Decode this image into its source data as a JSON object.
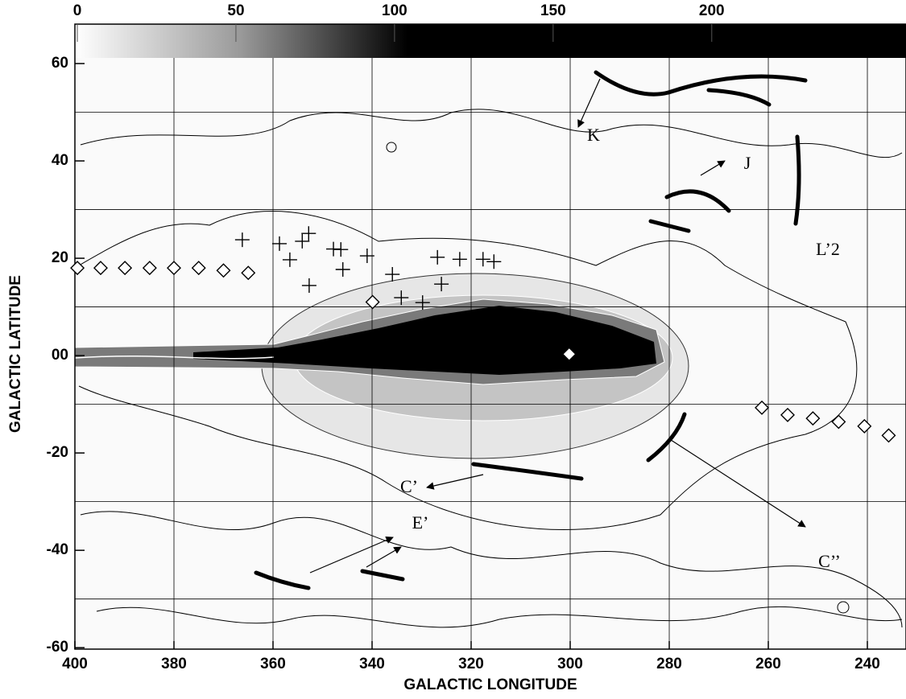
{
  "colorbar": {
    "lim": [
      0,
      262
    ],
    "ticks": [
      0,
      50,
      100,
      150,
      200
    ]
  },
  "chart_data": {
    "type": "map",
    "xlabel": "GALACTIC LONGITUDE",
    "ylabel": "GALACTIC LATITUDE",
    "xlim": [
      400,
      232.2
    ],
    "ylim": [
      -60.3,
      68.1
    ],
    "xticks": [
      400,
      380,
      360,
      340,
      320,
      300,
      280,
      260,
      240
    ],
    "yticks": [
      60,
      40,
      20,
      {
        "value": 0,
        "label": "00"
      },
      -20,
      -40,
      -60
    ],
    "ygrid": [
      50,
      30,
      10,
      -10,
      -30,
      -50
    ],
    "grid": true,
    "series": [
      {
        "marker": "diamond",
        "color": "#000000",
        "x": [
          399.5,
          394.8,
          389.9,
          384.9,
          380.0,
          375.0,
          370.0,
          365.0,
          339.9,
          300.2,
          261.3,
          256.1,
          251.0,
          245.8,
          240.6,
          235.7
        ],
        "y": [
          18,
          18,
          18,
          18,
          18,
          18,
          17.5,
          17,
          11,
          0.3,
          -10.7,
          -12.2,
          -12.9,
          -13.6,
          -14.5,
          -16.4
        ]
      },
      {
        "marker": "cross",
        "color": "#000000",
        "x": [
          366.2,
          358.7,
          354.1,
          352.8,
          347.8,
          346.3,
          341.0,
          326.8,
          322.3,
          317.6,
          315.4,
          326.0,
          329.8,
          352.7,
          356.6,
          345.9,
          335.9,
          334.1
        ],
        "y": [
          23.8,
          23.0,
          23.5,
          25.1,
          21.9,
          21.8,
          20.5,
          20.2,
          19.8,
          19.8,
          19.3,
          14.7,
          10.9,
          14.4,
          19.7,
          17.7,
          16.7,
          11.9
        ]
      }
    ],
    "annotations": [
      "K",
      "J",
      "L’2",
      "C’",
      "C’’",
      "E’"
    ]
  }
}
